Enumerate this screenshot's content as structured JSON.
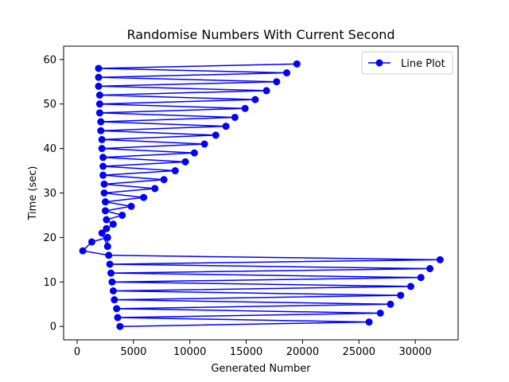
{
  "chart_data": {
    "type": "line",
    "title": "Randomise Numbers With Current Second",
    "xlabel": "Generated Number",
    "ylabel": "Time (sec)",
    "xlim": [
      -1200,
      33800
    ],
    "ylim": [
      -3,
      63
    ],
    "xticks": [
      0,
      5000,
      10000,
      15000,
      20000,
      25000,
      30000
    ],
    "yticks": [
      0,
      10,
      20,
      30,
      40,
      50,
      60
    ],
    "grid": false,
    "legend_position": "top-right",
    "colors": {
      "line": "#0000ff"
    },
    "series": [
      {
        "name": "Line Plot",
        "x": [
          3800,
          25900,
          3600,
          26900,
          3500,
          27800,
          3300,
          28700,
          3200,
          29600,
          3100,
          30500,
          3000,
          31300,
          2900,
          32200,
          2800,
          500,
          1300,
          2700,
          2700,
          2200,
          2600,
          3200,
          2600,
          4000,
          2500,
          4800,
          2500,
          5900,
          2400,
          6900,
          2400,
          7700,
          2300,
          8700,
          2300,
          9600,
          2300,
          10400,
          2200,
          11300,
          2200,
          12300,
          2100,
          13200,
          2100,
          14000,
          2000,
          14900,
          2000,
          15800,
          2000,
          16800,
          1900,
          17700,
          1900,
          18600,
          1900,
          19500
        ],
        "y": [
          0,
          1,
          2,
          3,
          4,
          5,
          6,
          7,
          8,
          9,
          10,
          11,
          12,
          13,
          14,
          15,
          16,
          17,
          19,
          20,
          18,
          21,
          22,
          23,
          24,
          25,
          26,
          27,
          28,
          29,
          30,
          31,
          32,
          33,
          34,
          35,
          36,
          37,
          38,
          39,
          40,
          41,
          42,
          43,
          44,
          45,
          46,
          47,
          48,
          49,
          50,
          51,
          52,
          53,
          54,
          55,
          56,
          57,
          58,
          59
        ]
      }
    ]
  }
}
